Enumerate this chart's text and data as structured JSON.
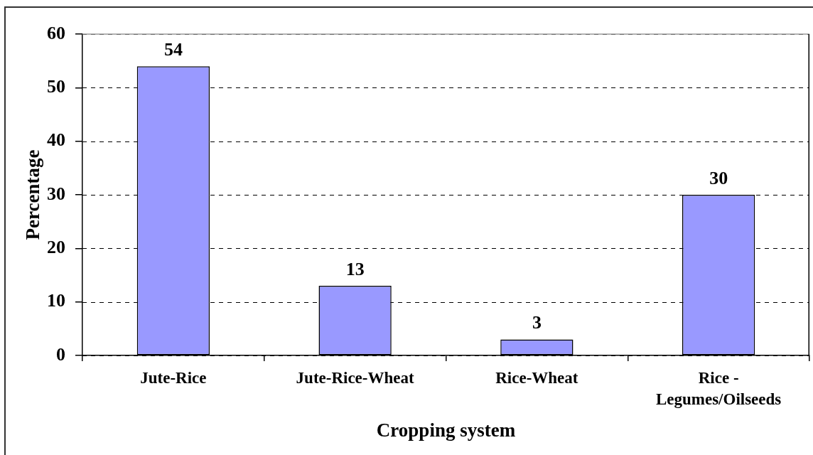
{
  "chart_data": {
    "type": "bar",
    "xlabel": "Cropping system",
    "ylabel": "Percentage",
    "categories": [
      "Jute-Rice",
      "Jute-Rice-Wheat",
      "Rice-Wheat",
      "Rice - Legumes/Oilseeds"
    ],
    "values": [
      54,
      13,
      3,
      30
    ],
    "color": "#9999ff",
    "ylim": [
      0,
      60
    ],
    "yticks": [
      0,
      10,
      20,
      30,
      40,
      50,
      60
    ],
    "grid": "y",
    "data_labels": true
  }
}
